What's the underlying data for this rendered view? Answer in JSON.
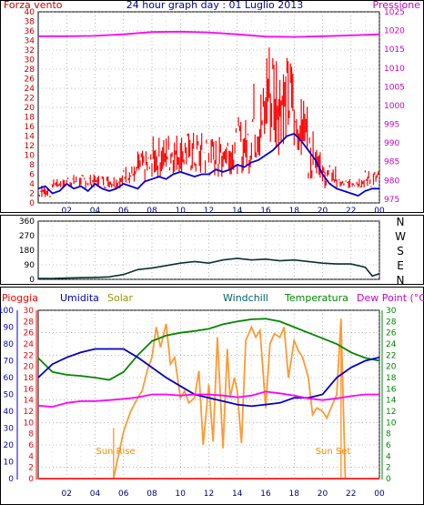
{
  "chart_data": [
    {
      "id": "wind",
      "type": "line",
      "title": "24 hour graph day : 01 Luglio 2013",
      "left_axis_label": "Forza vento",
      "right_axis_label": "Pressione",
      "x_ticks": [
        "02",
        "04",
        "06",
        "08",
        "10",
        "12",
        "14",
        "16",
        "18",
        "20",
        "22",
        "00"
      ],
      "y_left_ticks": [
        0,
        2,
        4,
        6,
        8,
        10,
        12,
        14,
        16,
        18,
        20,
        22,
        24,
        26,
        28,
        30,
        32,
        34,
        36,
        38,
        40
      ],
      "y_left_range": [
        0,
        40
      ],
      "y_right_ticks": [
        975,
        980,
        985,
        990,
        995,
        1000,
        1005,
        1010,
        1015,
        1020,
        1025
      ],
      "y_right_range": [
        974,
        1025
      ],
      "grid": "dotted",
      "series": [
        {
          "name": "Gust",
          "color": "#ff0000",
          "style": "dense-bars",
          "x": [
            0.5,
            1.5,
            2.5,
            3.5,
            4.5,
            5.5,
            6.5,
            7.5,
            8.5,
            9.5,
            10.5,
            11.5,
            12.5,
            13.5,
            14.5,
            15.5,
            16.5,
            17.5,
            18.5,
            19.5,
            20.5,
            21.5,
            22.5,
            23.5
          ],
          "low": [
            1,
            3,
            3,
            3,
            3,
            3,
            4,
            4,
            5,
            6,
            6,
            5,
            5,
            6,
            6,
            8,
            10,
            12,
            10,
            5,
            3,
            3,
            3,
            3
          ],
          "high": [
            4,
            5,
            6,
            6,
            6,
            6,
            8,
            11,
            14,
            15,
            15,
            15,
            14,
            16,
            18,
            26,
            36,
            31,
            22,
            15,
            8,
            5,
            6,
            7
          ]
        },
        {
          "name": "Wind",
          "color": "#0000dd",
          "x": [
            0,
            0.5,
            1,
            1.5,
            2,
            2.5,
            3,
            3.5,
            4,
            4.5,
            5,
            5.5,
            6,
            6.5,
            7,
            7.5,
            8,
            8.5,
            9,
            9.5,
            10,
            10.5,
            11,
            11.5,
            12,
            12.5,
            13,
            13.5,
            14,
            14.5,
            15,
            15.5,
            16,
            16.5,
            17,
            17.5,
            18,
            18.5,
            19,
            19.5,
            20,
            20.5,
            21,
            21.5,
            22,
            22.5,
            23,
            23.5,
            24
          ],
          "values": [
            3,
            3.5,
            2,
            2.5,
            4,
            3,
            3.5,
            2.5,
            4,
            3,
            2.5,
            3,
            4,
            3.5,
            3,
            4.5,
            5,
            5.5,
            5,
            6,
            6.5,
            6,
            5.5,
            6,
            6,
            7,
            6.5,
            7,
            8,
            7.5,
            8.5,
            9,
            10,
            11,
            12.5,
            14,
            14.5,
            13,
            11,
            9,
            6,
            4,
            3,
            2.5,
            2,
            1.5,
            2.5,
            3,
            3
          ]
        },
        {
          "name": "Pressione",
          "color": "#ff00ff",
          "axis": "right",
          "x": [
            0,
            2,
            4,
            6,
            8,
            10,
            12,
            14,
            16,
            18,
            20,
            22,
            24
          ],
          "values": [
            1018.5,
            1018.5,
            1018.6,
            1019,
            1019.6,
            1019.7,
            1019.5,
            1019,
            1018.4,
            1018.3,
            1018.5,
            1018.7,
            1019
          ]
        }
      ]
    },
    {
      "id": "direction",
      "type": "line",
      "x_ticks": [
        "02",
        "04",
        "06",
        "08",
        "10",
        "12",
        "14",
        "16",
        "18",
        "20",
        "22",
        "00"
      ],
      "y_left_ticks": [
        0,
        90,
        180,
        270,
        360
      ],
      "y_left_range": [
        0,
        360
      ],
      "right_labels": [
        "N",
        "W",
        "S",
        "E",
        "N"
      ],
      "grid": "dotted",
      "series": [
        {
          "name": "Direzione",
          "color": "#0a3030",
          "x": [
            0,
            1,
            2,
            3,
            4,
            5,
            6,
            7,
            8,
            9,
            10,
            11,
            12,
            13,
            14,
            15,
            16,
            17,
            18,
            19,
            20,
            21,
            22,
            23,
            23.5,
            24
          ],
          "values": [
            5,
            5,
            8,
            10,
            12,
            15,
            30,
            60,
            70,
            85,
            100,
            110,
            100,
            120,
            130,
            120,
            125,
            115,
            120,
            110,
            100,
            95,
            95,
            75,
            20,
            35
          ]
        }
      ]
    },
    {
      "id": "weather",
      "type": "line",
      "header_labels": [
        "Pioggia",
        "Umidita",
        "Solar",
        "Windchill",
        "Temperatura",
        "Dew Point (°C)"
      ],
      "x_ticks": [
        "02",
        "04",
        "06",
        "08",
        "10",
        "12",
        "14",
        "16",
        "18",
        "20",
        "22",
        "00"
      ],
      "y_humidity_ticks": [
        0,
        10,
        20,
        30,
        40,
        50,
        60,
        70,
        80,
        90,
        100
      ],
      "y_humidity_range": [
        0,
        100
      ],
      "y_rain_ticks": [
        0,
        2,
        4,
        6,
        8,
        10,
        12,
        14,
        16,
        18,
        20,
        22,
        24,
        26,
        28,
        30
      ],
      "y_rain_range": [
        0,
        30
      ],
      "y_temp_ticks": [
        0,
        2,
        4,
        6,
        8,
        10,
        12,
        14,
        16,
        18,
        20,
        22,
        24,
        26,
        28,
        30
      ],
      "y_temp_range": [
        0,
        30
      ],
      "annotations": [
        "Sun Rise",
        "Sun Set"
      ],
      "grid": "dotted",
      "series": [
        {
          "name": "Umidita",
          "color": "#0000cc",
          "axis": "humidity",
          "x": [
            0,
            1,
            2,
            3,
            4,
            5,
            6,
            7,
            8,
            9,
            10,
            11,
            12,
            13,
            14,
            15,
            16,
            17,
            18,
            19,
            20,
            21,
            22,
            23,
            24
          ],
          "values": [
            60,
            68,
            72,
            75,
            77,
            77,
            77,
            72,
            66,
            60,
            55,
            50,
            48,
            46,
            44,
            43,
            44,
            45,
            48,
            48,
            50,
            60,
            66,
            70,
            72
          ]
        },
        {
          "name": "Temperatura",
          "color": "#008800",
          "axis": "temp",
          "x": [
            0,
            1,
            2,
            3,
            4,
            5,
            6,
            7,
            8,
            9,
            10,
            11,
            12,
            13,
            14,
            15,
            16,
            17,
            18,
            19,
            20,
            21,
            22,
            23,
            24
          ],
          "values": [
            21.5,
            19,
            18.5,
            18.3,
            18,
            17.6,
            19,
            22,
            24.5,
            25.5,
            26,
            26.3,
            26.7,
            27.5,
            28,
            28.4,
            28.5,
            28,
            27,
            26,
            25,
            24,
            22.5,
            21.5,
            21
          ]
        },
        {
          "name": "Dew Point",
          "color": "#ff00ff",
          "axis": "temp",
          "x": [
            0,
            1,
            2,
            3,
            4,
            5,
            6,
            7,
            8,
            9,
            10,
            11,
            12,
            13,
            14,
            15,
            16,
            17,
            18,
            19,
            20,
            21,
            22,
            23,
            24
          ],
          "values": [
            13,
            12.8,
            13.5,
            13.8,
            13.8,
            14,
            14.2,
            14.5,
            15,
            15,
            14.8,
            15,
            15,
            14.8,
            14.5,
            14.8,
            15.5,
            15.2,
            14.8,
            14.3,
            14,
            14.3,
            14.7,
            15,
            15
          ]
        },
        {
          "name": "Solar",
          "color": "#ff9933",
          "axis": "humidity",
          "x": [
            5.3,
            5.6,
            6,
            6.5,
            7,
            7.3,
            7.7,
            8,
            8.3,
            8.6,
            9,
            9.3,
            9.6,
            10,
            10.3,
            10.6,
            11,
            11.3,
            11.6,
            12,
            12.3,
            12.6,
            13,
            13.3,
            13.5,
            13.8,
            14,
            14.3,
            14.6,
            15,
            15.3,
            15.6,
            16,
            16.3,
            16.6,
            17,
            17.3,
            17.6,
            18,
            18.3,
            18.6,
            19,
            19.3,
            19.6,
            20,
            20.3,
            20.6,
            21,
            21.3,
            21.6
          ],
          "values": [
            0,
            12,
            28,
            40,
            48,
            52,
            65,
            72,
            90,
            78,
            92,
            68,
            72,
            48,
            52,
            45,
            48,
            64,
            20,
            56,
            22,
            84,
            18,
            77,
            48,
            60,
            52,
            21,
            82,
            90,
            84,
            88,
            42,
            80,
            86,
            84,
            90,
            60,
            82,
            76,
            72,
            60,
            38,
            42,
            40,
            36,
            42,
            50,
            95,
            0
          ]
        },
        {
          "name": "Pioggia",
          "color": "#ff3333",
          "axis": "rain",
          "x": [
            0,
            24
          ],
          "values": [
            0,
            0
          ]
        }
      ]
    }
  ]
}
